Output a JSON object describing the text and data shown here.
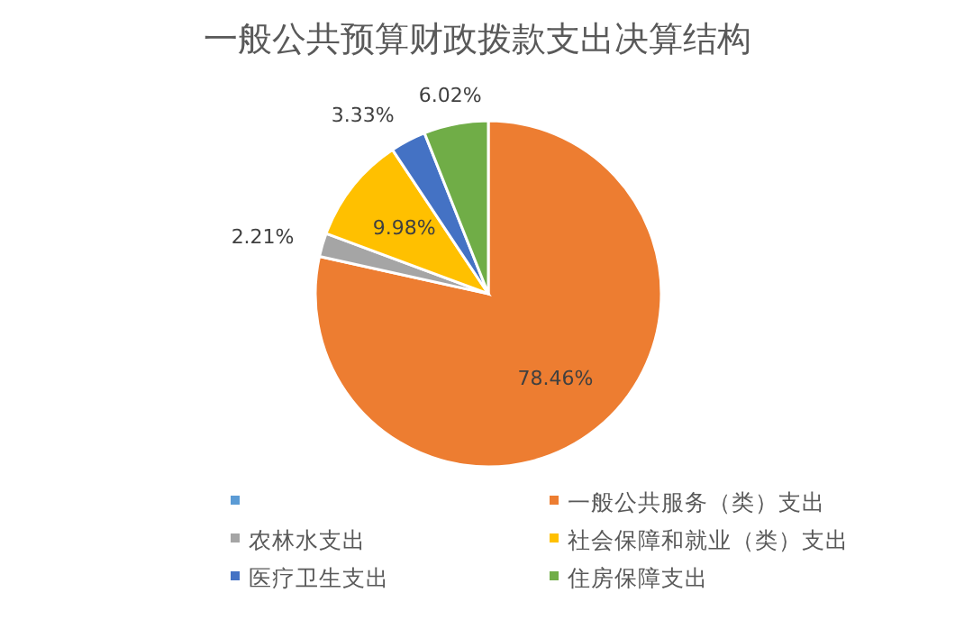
{
  "chart_data": {
    "type": "pie",
    "title": "一般公共预算财政拨款支出决算结构",
    "categories": [
      null,
      "一般公共服务（类）支出",
      "农林水支出",
      "社会保障和就业（类）支出",
      "医疗卫生支出",
      "住房保障支出"
    ],
    "values": [
      0,
      78.46,
      2.21,
      9.98,
      3.33,
      6.02
    ],
    "colors": [
      "#5b9bd5",
      "#ed7d31",
      "#a5a5a5",
      "#ffc000",
      "#4472c4",
      "#70ad47"
    ],
    "value_labels": [
      null,
      "78.46%",
      "2.21%",
      "9.98%",
      "3.33%",
      "6.02%"
    ],
    "legend": "bottom"
  }
}
